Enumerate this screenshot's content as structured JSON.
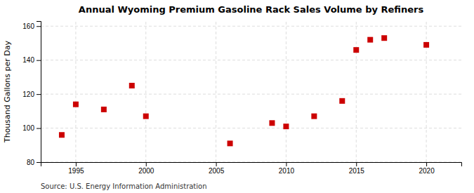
{
  "chart_data": {
    "type": "scatter",
    "title": "Annual Wyoming Premium Gasoline Rack Sales Volume by Refiners",
    "ylabel": "Thousand Gallons per Day",
    "source": "Source: U.S. Energy Information Administration",
    "x": [
      1994,
      1995,
      1997,
      1999,
      2000,
      2006,
      2009,
      2010,
      2012,
      2014,
      2015,
      2016,
      2017,
      2020
    ],
    "values": [
      96,
      114,
      111,
      125,
      107,
      91,
      103,
      101,
      107,
      116,
      146,
      152,
      153,
      149
    ],
    "xlim": [
      1992.5,
      2022.5
    ],
    "ylim": [
      80,
      163
    ],
    "xticks": [
      1995,
      2000,
      2005,
      2010,
      2015,
      2020
    ],
    "yticks": [
      80,
      100,
      120,
      140,
      160
    ],
    "color": "#cc0000",
    "marker": "square",
    "grid": true
  }
}
